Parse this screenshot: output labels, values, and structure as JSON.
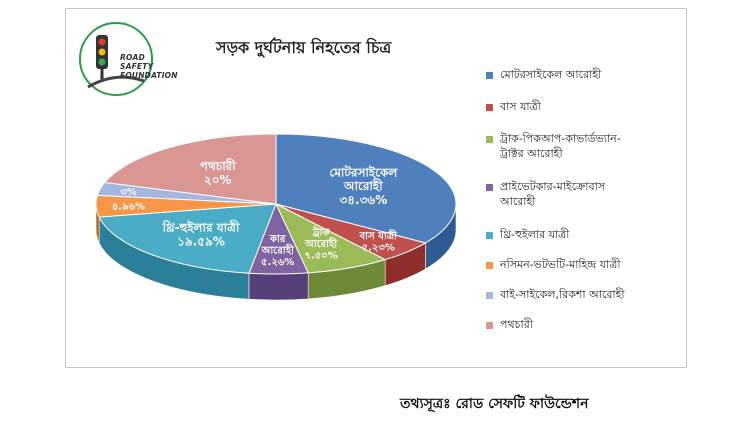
{
  "logo": {
    "text_lines": [
      "ROAD",
      "SAFETY",
      "FOUNDATION"
    ]
  },
  "colors": {
    "top": [
      "#4f80bd",
      "#c0504d",
      "#9bbb59",
      "#8064a2",
      "#4bacc6",
      "#f79646",
      "#a5b6e0",
      "#d99694"
    ],
    "side": [
      "#2f5b93",
      "#8f2f2c",
      "#6e8a37",
      "#573f7a",
      "#2c7f98",
      "#b86620",
      "#7d8fbd",
      "#b06a68"
    ]
  },
  "source": "তথ্যসূত্রঃ রোড সেফটি ফাউন্ডেশন",
  "chart_data": {
    "type": "pie",
    "title": "সড়ক দুর্ঘটনায় নিহতের চিত্র",
    "legend_position": "right",
    "slices": [
      {
        "name": "মোটরসাইকেল আরোহী",
        "value": 34.36,
        "label_lines": [
          "মোটরসাইকেল",
          "আরোহী",
          "৩৪.৩৬%"
        ]
      },
      {
        "name": "বাস যাত্রী",
        "value": 5.23,
        "label_lines": [
          "বাস যাত্রী",
          "৫.২৩%"
        ]
      },
      {
        "name": "ট্রাক-পিকআপ-কাভার্ডভ্যান-ট্রাক্টর আরোহী",
        "value": 7.5,
        "label_lines": [
          "ট্রাক",
          "আরোহী",
          "৭.৫০%"
        ]
      },
      {
        "name": "প্রাইভেটকার-মাইক্রোবাস আরোহী",
        "value": 5.26,
        "label_lines": [
          "কার",
          "আরোহী",
          "৫.২৬%"
        ]
      },
      {
        "name": "থ্রি-হুইলার যাত্রী",
        "value": 19.59,
        "label_lines": [
          "থ্রি-হুইলার যাত্রী",
          "১৯.৫৯%"
        ]
      },
      {
        "name": "নসিমন-ভটভটি-মাহিন্দ্র যাত্রী",
        "value": 4.96,
        "label_lines": [
          "৪.৯৬%"
        ]
      },
      {
        "name": "বাই-সাইকেল,রিকশা আরোহী",
        "value": 3,
        "label_lines": [
          "৩%"
        ]
      },
      {
        "name": "পথচারী",
        "value": 20,
        "label_lines": [
          "পথচারী",
          "২০%"
        ]
      }
    ],
    "legend": [
      {
        "lines": [
          "মোটরসাইকেল আরোহী"
        ]
      },
      {
        "lines": [
          "বাস যাত্রী"
        ]
      },
      {
        "lines": [
          "ট্রাক-পিকআপ-কাভার্ডভ্যান-",
          "ট্রাক্টর আরোহী"
        ]
      },
      {
        "lines": [
          "প্রাইভেটকার-মাইক্রোবাস",
          "আরোহী"
        ]
      },
      {
        "lines": [
          "থ্রি-হুইলার যাত্রী"
        ]
      },
      {
        "lines": [
          "নসিমন-ভটভটি-মাহিন্দ্র যাত্রী"
        ]
      },
      {
        "lines": [
          "বাই-সাইকেল,রিকশা আরোহী"
        ]
      },
      {
        "lines": [
          "পথচারী"
        ]
      }
    ]
  }
}
